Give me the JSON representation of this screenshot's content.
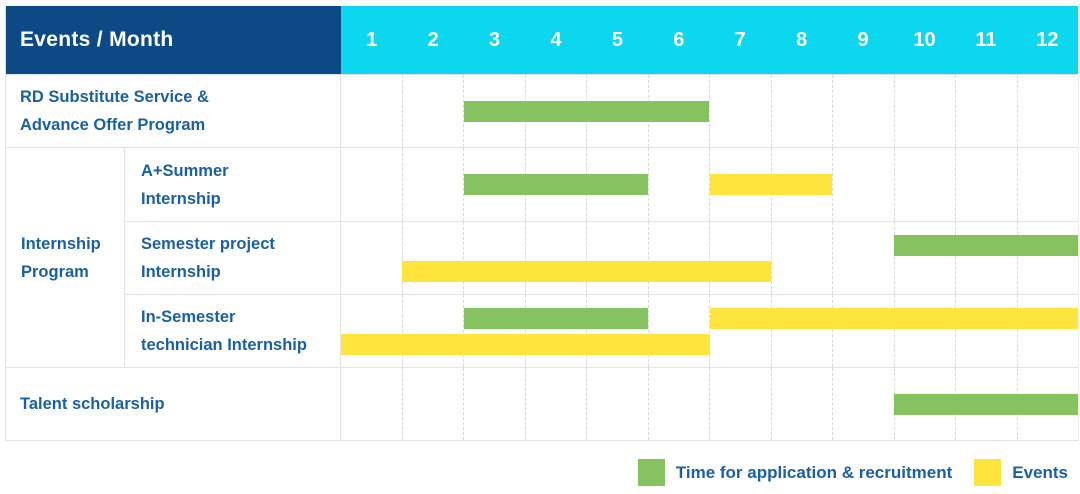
{
  "header": {
    "title": "Events / Month",
    "months": [
      "1",
      "2",
      "3",
      "4",
      "5",
      "6",
      "7",
      "8",
      "9",
      "10",
      "11",
      "12"
    ]
  },
  "colors": {
    "header_navy": "#0d4a85",
    "header_cyan": "#0bd7ef",
    "application_green": "#86c360",
    "event_yellow": "#ffe43d",
    "label_blue": "#1a60a7",
    "grid_line": "#e3e3e3",
    "month_dash": "#d9d9d9"
  },
  "rows": [
    {
      "kind": "simple",
      "label_lines": [
        "RD Substitute Service &",
        "Advance Offer Program"
      ],
      "lanes": [
        [
          {
            "type": "application",
            "start_month": 3,
            "end_month": 6
          }
        ]
      ]
    },
    {
      "kind": "group",
      "label_lines": [
        "Internship",
        "Program"
      ],
      "subrows": [
        {
          "label_lines": [
            "A+Summer",
            "Internship"
          ],
          "lanes": [
            [
              {
                "type": "application",
                "start_month": 3,
                "end_month": 5
              },
              {
                "type": "event",
                "start_month": 7,
                "end_month": 8
              }
            ]
          ]
        },
        {
          "label_lines": [
            "Semester project",
            "Internship"
          ],
          "lanes": [
            [
              {
                "type": "application",
                "start_month": 10,
                "end_month": 12
              }
            ],
            [
              {
                "type": "event",
                "start_month": 2,
                "end_month": 7
              }
            ]
          ]
        },
        {
          "label_lines": [
            "In-Semester",
            "technician Internship"
          ],
          "lanes": [
            [
              {
                "type": "application",
                "start_month": 3,
                "end_month": 5
              },
              {
                "type": "event",
                "start_month": 7,
                "end_month": 12
              }
            ],
            [
              {
                "type": "event",
                "start_month": 1,
                "end_month": 6
              }
            ]
          ]
        }
      ]
    },
    {
      "kind": "simple",
      "label_lines": [
        "Talent scholarship"
      ],
      "lanes": [
        [
          {
            "type": "application",
            "start_month": 10,
            "end_month": 12
          }
        ]
      ]
    }
  ],
  "legend": {
    "items": [
      {
        "type": "application",
        "label": "Time for application & recruitment"
      },
      {
        "type": "event",
        "label": "Events"
      }
    ]
  },
  "chart_data": {
    "type": "bar",
    "subtype": "gantt",
    "title": "Events / Month",
    "x_axis": {
      "label": "Month",
      "ticks": [
        1,
        2,
        3,
        4,
        5,
        6,
        7,
        8,
        9,
        10,
        11,
        12
      ],
      "range": [
        1,
        12
      ]
    },
    "legend_position": "bottom-right",
    "grid": "dashed-vertical-per-month",
    "legend": [
      {
        "series": "Time for application & recruitment",
        "color": "#86c360"
      },
      {
        "series": "Events",
        "color": "#ffe43d"
      }
    ],
    "tasks": [
      {
        "group": "",
        "name": "RD Substitute Service & Advance Offer Program",
        "bars": [
          {
            "kind": "Time for application & recruitment",
            "start_month": 3,
            "end_month": 6
          }
        ]
      },
      {
        "group": "Internship Program",
        "name": "A+Summer Internship",
        "bars": [
          {
            "kind": "Time for application & recruitment",
            "start_month": 3,
            "end_month": 5
          },
          {
            "kind": "Events",
            "start_month": 7,
            "end_month": 8
          }
        ]
      },
      {
        "group": "Internship Program",
        "name": "Semester project Internship",
        "bars": [
          {
            "kind": "Time for application & recruitment",
            "start_month": 10,
            "end_month": 12
          },
          {
            "kind": "Events",
            "start_month": 2,
            "end_month": 7
          }
        ]
      },
      {
        "group": "Internship Program",
        "name": "In-Semester technician Internship",
        "bars": [
          {
            "kind": "Time for application & recruitment",
            "start_month": 3,
            "end_month": 5
          },
          {
            "kind": "Events",
            "start_month": 7,
            "end_month": 12
          },
          {
            "kind": "Events",
            "start_month": 1,
            "end_month": 6
          }
        ]
      },
      {
        "group": "",
        "name": "Talent scholarship",
        "bars": [
          {
            "kind": "Time for application & recruitment",
            "start_month": 10,
            "end_month": 12
          }
        ]
      }
    ]
  }
}
